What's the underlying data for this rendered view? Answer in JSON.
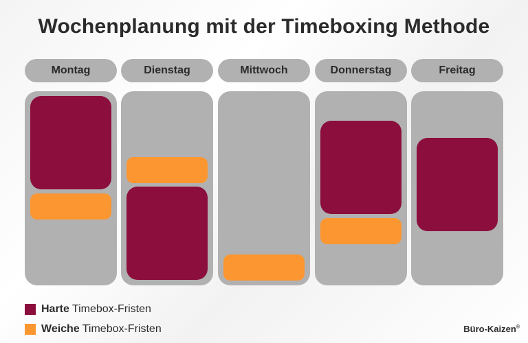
{
  "title": "Wochenplanung mit der Timeboxing Methode",
  "days": [
    {
      "name": "Montag"
    },
    {
      "name": "Dienstag"
    },
    {
      "name": "Mittwoch"
    },
    {
      "name": "Donnerstag"
    },
    {
      "name": "Freitag"
    }
  ],
  "legend": {
    "hard": {
      "bold": "Harte",
      "text": "Timebox-Fristen",
      "color": "#8b0e3c"
    },
    "soft": {
      "bold": "Weiche",
      "text": "Timebox-Fristen",
      "color": "#fc9630"
    }
  },
  "brand": {
    "name": "Büro-Kaizen",
    "mark": "®"
  },
  "colors": {
    "column": "#b1b1b1",
    "hard": "#8b0e3c",
    "soft": "#fc9630",
    "text": "#2b2b2b"
  }
}
